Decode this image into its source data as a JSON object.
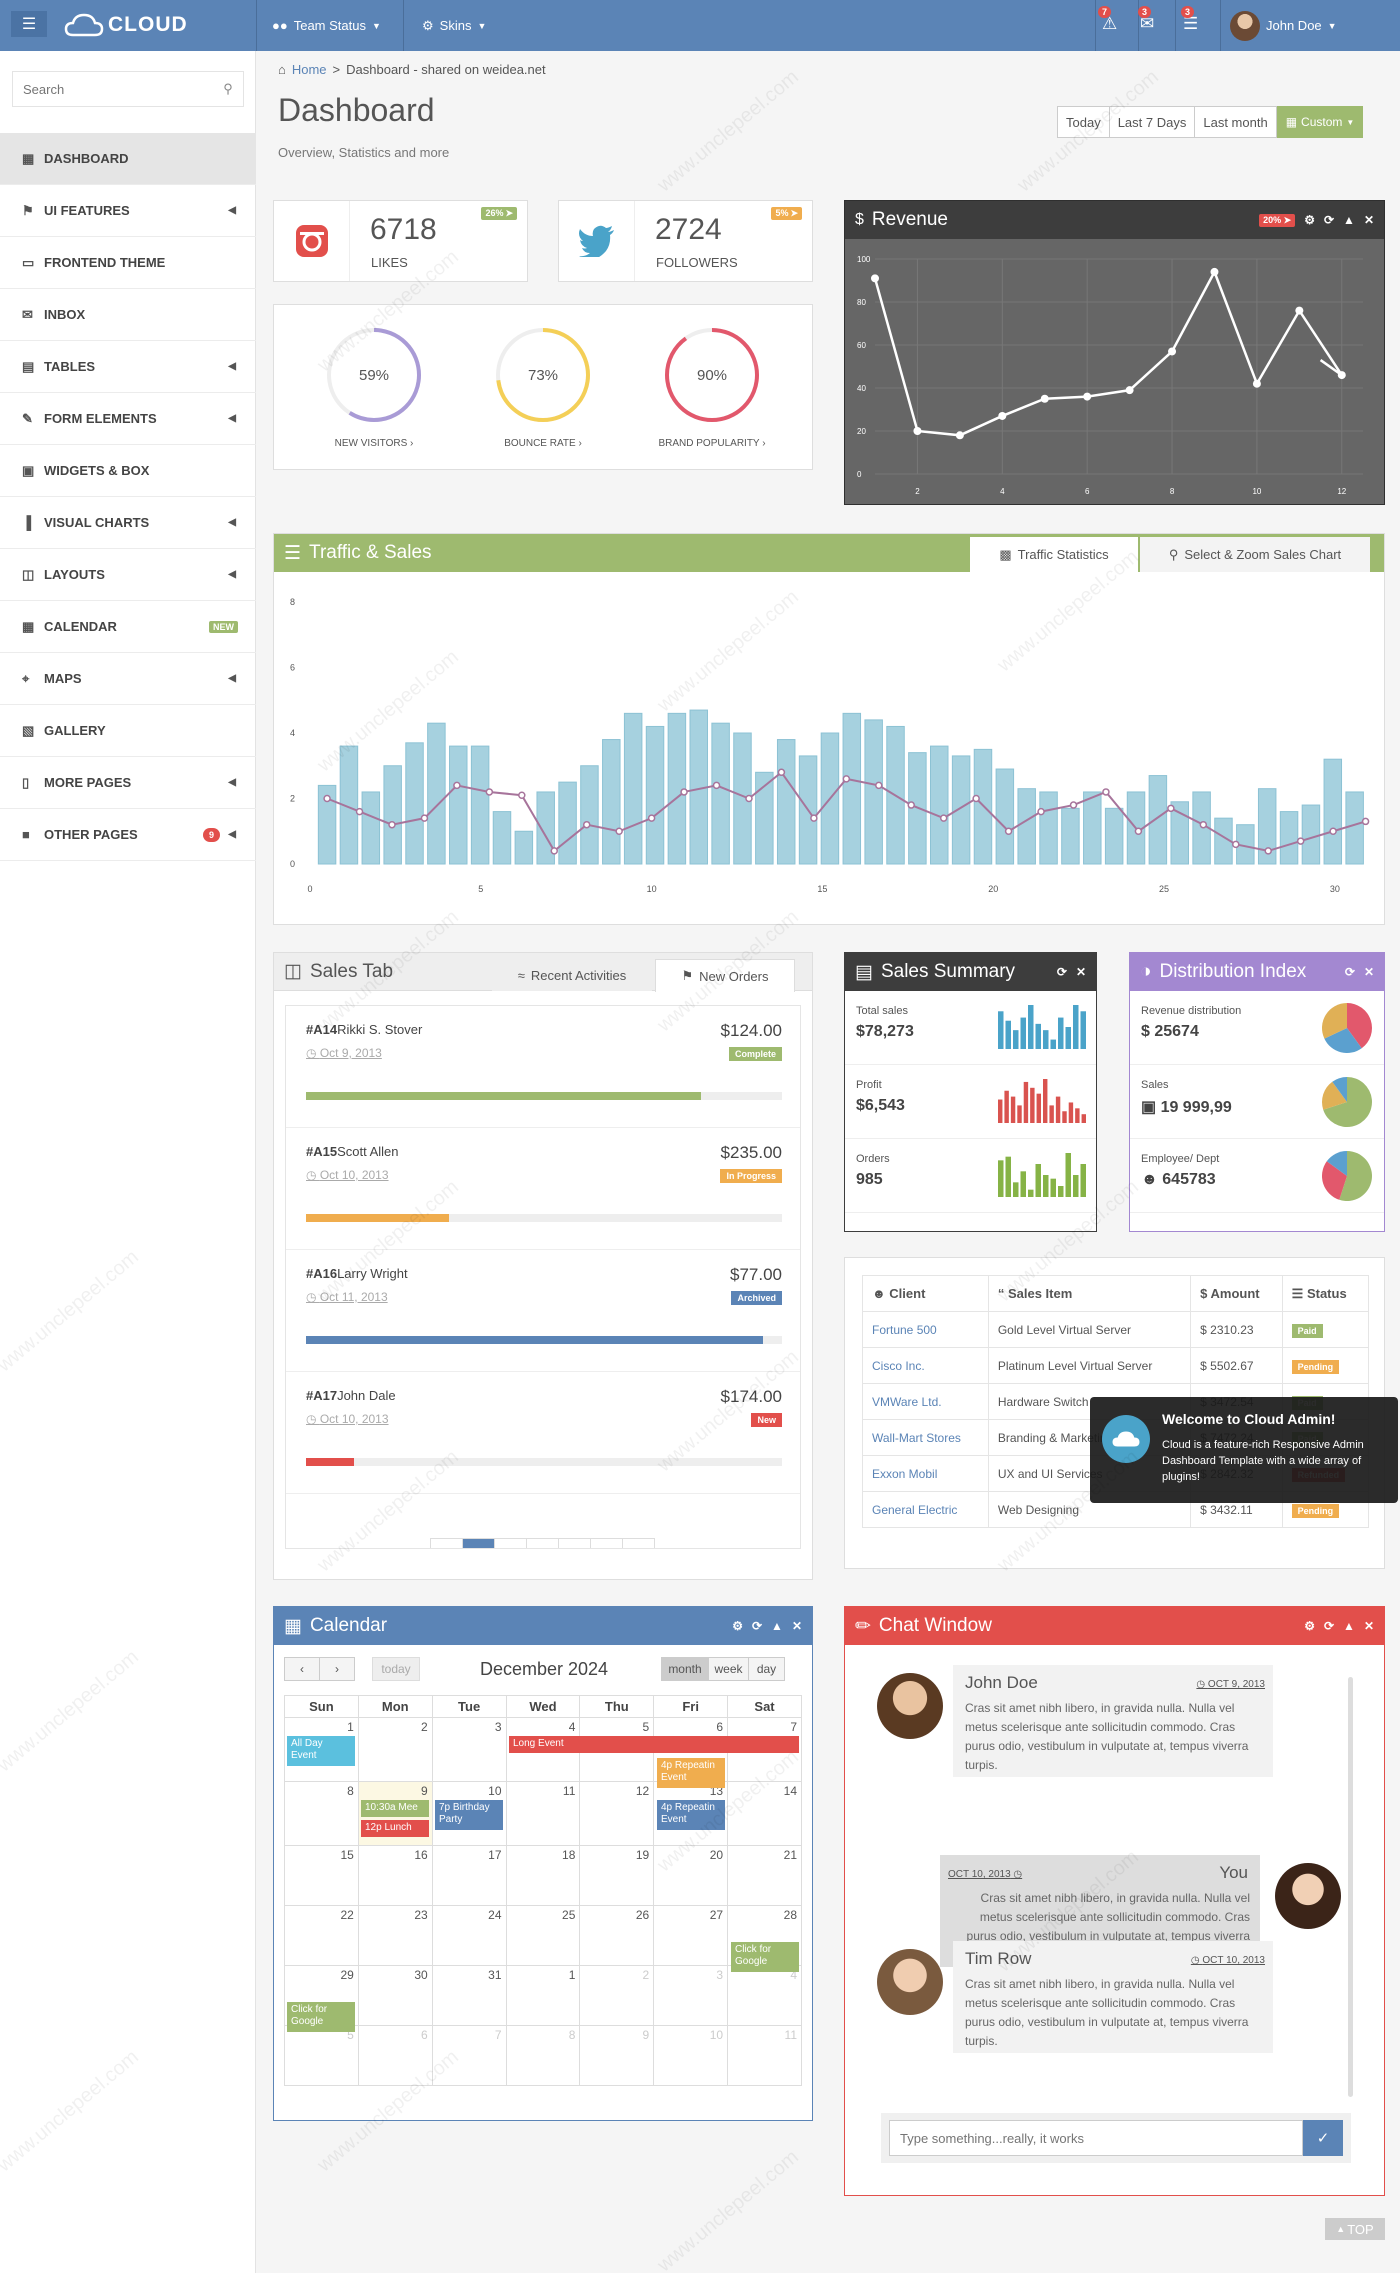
{
  "topbar": {
    "logo": "CLOUD",
    "team_status": "Team Status",
    "skins": "Skins",
    "badges": [
      "7",
      "3",
      "3"
    ],
    "user": "John Doe"
  },
  "search": {
    "placeholder": "Search"
  },
  "sidebar": {
    "items": [
      {
        "label": "DASHBOARD",
        "icon": "dashboard-icon",
        "arrow": false,
        "active": true
      },
      {
        "label": "UI FEATURES",
        "icon": "bookmark-icon",
        "arrow": true
      },
      {
        "label": "FRONTEND THEME",
        "icon": "desktop-icon",
        "arrow": false
      },
      {
        "label": "INBOX",
        "icon": "envelope-icon",
        "arrow": false
      },
      {
        "label": "TABLES",
        "icon": "table-icon",
        "arrow": true
      },
      {
        "label": "FORM ELEMENTS",
        "icon": "pencil-icon",
        "arrow": true
      },
      {
        "label": "WIDGETS & BOX",
        "icon": "th-large-icon",
        "arrow": false
      },
      {
        "label": "VISUAL CHARTS",
        "icon": "bar-chart-icon",
        "arrow": true
      },
      {
        "label": "LAYOUTS",
        "icon": "columns-icon",
        "arrow": true
      },
      {
        "label": "CALENDAR",
        "icon": "calendar-icon",
        "badge": "NEW"
      },
      {
        "label": "MAPS",
        "icon": "map-marker-icon",
        "arrow": true
      },
      {
        "label": "GALLERY",
        "icon": "picture-icon",
        "arrow": false
      },
      {
        "label": "MORE PAGES",
        "icon": "file-icon",
        "arrow": true
      },
      {
        "label": "OTHER PAGES",
        "icon": "briefcase-icon",
        "arrow": true,
        "badge": "9"
      }
    ]
  },
  "breadcrumb": {
    "home": "Home",
    "current": "Dashboard - shared on weidea.net"
  },
  "header": {
    "title": "Dashboard",
    "subtitle": "Overview, Statistics and more"
  },
  "ranges": {
    "today": "Today",
    "last7": "Last 7 Days",
    "lastmonth": "Last month",
    "custom": "Custom"
  },
  "stats": [
    {
      "value": "6718",
      "label": "LIKES",
      "pct": "26%"
    },
    {
      "value": "2724",
      "label": "FOLLOWERS",
      "pct": "5%"
    }
  ],
  "donuts": [
    {
      "value": "59%",
      "pct": 59,
      "label": "NEW VISITORS",
      "color": "#a99bd6"
    },
    {
      "value": "73%",
      "pct": 73,
      "label": "BOUNCE RATE",
      "color": "#f4cf57"
    },
    {
      "value": "90%",
      "pct": 90,
      "label": "BRAND POPULARITY",
      "color": "#e2586c"
    }
  ],
  "revenue": {
    "title": "Revenue",
    "pct": "20%"
  },
  "traffic": {
    "title": "Traffic & Sales",
    "tab1": "Traffic Statistics",
    "tab2": "Select & Zoom Sales Chart"
  },
  "chart_data": [
    {
      "type": "line",
      "title": "Revenue",
      "x": [
        1,
        2,
        3,
        4,
        5,
        6,
        7,
        8,
        9,
        10,
        11,
        12
      ],
      "values": [
        91,
        20,
        18,
        27,
        35,
        36,
        39,
        57,
        94,
        42,
        76,
        46
      ],
      "ylim": [
        0,
        100
      ],
      "xticks": [
        "2",
        "4",
        "6",
        "8",
        "10",
        "12"
      ],
      "yticks": [
        "0",
        "20",
        "40",
        "60",
        "80",
        "100"
      ],
      "grid": true,
      "extra_x": [
        11.5
      ],
      "extra_values": [
        53
      ]
    },
    {
      "type": "bar",
      "title": "Traffic & Sales",
      "series": [
        {
          "type": "bar",
          "values": [
            2.4,
            3.6,
            2.2,
            3.0,
            3.7,
            4.3,
            3.6,
            3.6,
            1.6,
            1.0,
            2.2,
            2.5,
            3.0,
            3.8,
            4.6,
            4.2,
            4.6,
            4.7,
            4.3,
            4.0,
            2.8,
            3.8,
            3.3,
            4.0,
            4.6,
            4.4,
            4.2,
            3.4,
            3.6,
            3.3,
            3.5,
            2.9,
            2.3,
            2.2,
            1.7,
            2.2,
            1.7,
            2.2,
            2.7,
            1.9,
            2.2,
            1.4,
            1.2,
            2.3,
            1.6,
            1.8,
            3.2,
            2.2
          ],
          "x0": 0.5,
          "dx": 0.64
        },
        {
          "type": "line",
          "values": [
            2.0,
            1.6,
            1.2,
            1.4,
            2.4,
            2.2,
            2.1,
            0.4,
            1.2,
            1.0,
            1.4,
            2.2,
            2.4,
            2.0,
            2.8,
            1.4,
            2.6,
            2.4,
            1.8,
            1.4,
            2.0,
            1.0,
            1.6,
            1.8,
            2.2,
            1.0,
            1.7,
            1.2,
            0.6,
            0.4,
            0.7,
            1.0,
            1.3
          ],
          "x0": 0.5,
          "dx": 0.95
        }
      ],
      "ylim": [
        0,
        8
      ],
      "xlim": [
        0,
        31
      ],
      "xticks": [
        "0",
        "5",
        "10",
        "15",
        "20",
        "25",
        "30"
      ],
      "yticks": [
        "0",
        "2",
        "4",
        "6",
        "8"
      ]
    },
    {
      "type": "bar",
      "title": "Sales Summary sparklines",
      "series": [
        {
          "name": "Total sales",
          "values": [
            12,
            9,
            6,
            10,
            14,
            8,
            6,
            3,
            10,
            7,
            14,
            12
          ],
          "color": "#4aa3c9"
        },
        {
          "name": "Profit",
          "values": [
            8,
            11,
            9,
            6,
            14,
            12,
            10,
            15,
            6,
            9,
            4,
            7,
            5,
            3
          ],
          "color": "#d9534f"
        },
        {
          "name": "Orders",
          "values": [
            10,
            11,
            4,
            7,
            2,
            9,
            6,
            5,
            3,
            12,
            6,
            9
          ],
          "color": "#86b346"
        }
      ]
    },
    {
      "type": "pie",
      "title": "Distribution Index",
      "series": [
        {
          "name": "Revenue distribution",
          "values": [
            40,
            28,
            32
          ],
          "colors": [
            "#e2586c",
            "#5ba0cf",
            "#e0b056"
          ]
        },
        {
          "name": "Sales",
          "values": [
            70,
            20,
            10
          ],
          "colors": [
            "#9eba6f",
            "#e0b056",
            "#5ba0cf"
          ]
        },
        {
          "name": "Employee/ Dept",
          "values": [
            55,
            30,
            15
          ],
          "colors": [
            "#9eba6f",
            "#e2586c",
            "#5ba0cf"
          ]
        }
      ]
    }
  ],
  "sales_tab": {
    "title": "Sales Tab",
    "tab1": "Recent Activities",
    "tab2": "New Orders",
    "items": [
      {
        "id": "#A14",
        "name": "Rikki S. Stover",
        "date": "Oct 9, 2013",
        "amount": "$124.00",
        "status": "Complete",
        "status_color": "#9eba6f",
        "progress": 0.83,
        "bar_color": "#9eba6f"
      },
      {
        "id": "#A15",
        "name": "Scott Allen",
        "date": "Oct 10, 2013",
        "amount": "$235.00",
        "status": "In Progress",
        "status_color": "#f0ad4e",
        "progress": 0.3,
        "bar_color": "#f0ad4e"
      },
      {
        "id": "#A16",
        "name": "Larry Wright",
        "date": "Oct 11, 2013",
        "amount": "$77.00",
        "status": "Archived",
        "status_color": "#5b84b6",
        "progress": 0.96,
        "bar_color": "#5b84b6"
      },
      {
        "id": "#A17",
        "name": "John Dale",
        "date": "Oct 10, 2013",
        "amount": "$174.00",
        "status": "New",
        "status_color": "#e24f4b",
        "progress": 0.1,
        "bar_color": "#e24f4b"
      }
    ],
    "pages": [
      "«",
      "1",
      "2",
      "3",
      "4",
      "5",
      "›"
    ]
  },
  "sales_summary": {
    "title": "Sales Summary",
    "rows": [
      {
        "label": "Total sales",
        "value": "$78,273"
      },
      {
        "label": "Profit",
        "value": "$6,543"
      },
      {
        "label": "Orders",
        "value": "985"
      }
    ]
  },
  "distribution": {
    "title": "Distribution Index",
    "rows": [
      {
        "label": "Revenue distribution",
        "value": "$ 25674"
      },
      {
        "label": "Sales",
        "value": "19 999,99"
      },
      {
        "label": "Employee/ Dept",
        "value": "645783"
      }
    ]
  },
  "clients": {
    "headers": [
      "Client",
      "Sales Item",
      "Amount",
      "Status"
    ],
    "rows": [
      {
        "client": "Fortune 500",
        "item": "Gold Level Virtual Server",
        "amount": "$ 2310.23",
        "status": "Paid",
        "color": "#9eba6f"
      },
      {
        "client": "Cisco Inc.",
        "item": "Platinum Level Virtual Server",
        "amount": "$ 5502.67",
        "status": "Pending",
        "color": "#f0ad4e"
      },
      {
        "client": "VMWare Ltd.",
        "item": "Hardware Switch",
        "amount": "$ 3472.54",
        "status": "Paid",
        "color": "#9eba6f"
      },
      {
        "client": "Wall-Mart Stores",
        "item": "Branding & Marketing",
        "amount": "$ 7472.24",
        "status": "Paid",
        "color": "#9eba6f"
      },
      {
        "client": "Exxon Mobil",
        "item": "UX and UI Services",
        "amount": "$ 2842.32",
        "status": "Refunded",
        "color": "#e24f4b"
      },
      {
        "client": "General Electric",
        "item": "Web Designing",
        "amount": "$ 3432.11",
        "status": "Pending",
        "color": "#f0ad4e"
      }
    ]
  },
  "toast": {
    "title": "Welcome to Cloud Admin!",
    "body": "Cloud is a feature-rich Responsive Admin Dashboard Template with a wide array of plugins!"
  },
  "calendar": {
    "title": "Calendar",
    "month": "December 2024",
    "today": "today",
    "views": [
      "month",
      "week",
      "day"
    ],
    "days": [
      "Sun",
      "Mon",
      "Tue",
      "Wed",
      "Thu",
      "Fri",
      "Sat"
    ],
    "weeks": [
      [
        "",
        "1",
        "2",
        "3",
        "4",
        "5",
        "6",
        "7"
      ],
      [
        "",
        "8",
        "9",
        "10",
        "11",
        "12",
        "13",
        "14"
      ],
      [
        "",
        "15",
        "16",
        "17",
        "18",
        "19",
        "20",
        "21"
      ],
      [
        "",
        "22",
        "23",
        "24",
        "25",
        "26",
        "27",
        "28"
      ],
      [
        "",
        "29",
        "30",
        "31",
        "1",
        "2",
        "3",
        "4"
      ],
      [
        "",
        "5",
        "6",
        "7",
        "8",
        "9",
        "10",
        "11"
      ]
    ],
    "events": [
      {
        "text": "All Day Event",
        "row": 0,
        "col": 0,
        "span": 1,
        "color": "#5bc0de",
        "lines": 2
      },
      {
        "text": "Long Event",
        "row": 0,
        "col": 3,
        "span": 4,
        "color": "#e24f4b",
        "lines": 1
      },
      {
        "text": "4p Repeatin Event",
        "row": 0,
        "col": 5,
        "span": 1,
        "color": "#f0ad4e",
        "lines": 2,
        "off": 1
      },
      {
        "text": "10:30a Mee",
        "row": 1,
        "col": 1,
        "span": 1,
        "color": "#9eba6f",
        "lines": 1
      },
      {
        "text": "12p Lunch",
        "row": 1,
        "col": 1,
        "span": 1,
        "color": "#e24f4b",
        "lines": 1,
        "off": 1
      },
      {
        "text": "7p Birthday Party",
        "row": 1,
        "col": 2,
        "span": 1,
        "color": "#5b84b6",
        "lines": 2
      },
      {
        "text": "4p Repeatin Event",
        "row": 1,
        "col": 5,
        "span": 1,
        "color": "#5b84b6",
        "lines": 2
      },
      {
        "text": "Click for Google",
        "row": 3,
        "col": 6,
        "span": 1,
        "color": "#9eba6f",
        "lines": 2,
        "off": 1
      },
      {
        "text": "Click for Google",
        "row": 4,
        "col": 0,
        "span": 1,
        "color": "#9eba6f",
        "lines": 2,
        "off": 1
      }
    ]
  },
  "chat": {
    "title": "Chat Window",
    "messages": [
      {
        "name": "John Doe",
        "date": "OCT 9, 2013",
        "text": "Cras sit amet nibh libero, in gravida nulla. Nulla vel metus scelerisque ante sollicitudin commodo. Cras purus odio, vestibulum in vulputate at, tempus viverra turpis.",
        "side": "left"
      },
      {
        "name": "You",
        "date": "OCT 10, 2013",
        "text": "Cras sit amet nibh libero, in gravida nulla. Nulla vel metus scelerisque ante sollicitudin commodo. Cras purus odio, vestibulum in vulputate at, tempus viverra turpis.",
        "side": "right"
      },
      {
        "name": "Tim Row",
        "date": "OCT 10, 2013",
        "text": "Cras sit amet nibh libero, in gravida nulla. Nulla vel metus scelerisque ante sollicitudin commodo. Cras purus odio, vestibulum in vulputate at, tempus viverra turpis.",
        "side": "left"
      }
    ],
    "placeholder": "Type something...really, it works"
  },
  "top_button": "TOP",
  "watermark": "www.unclepeel.com"
}
